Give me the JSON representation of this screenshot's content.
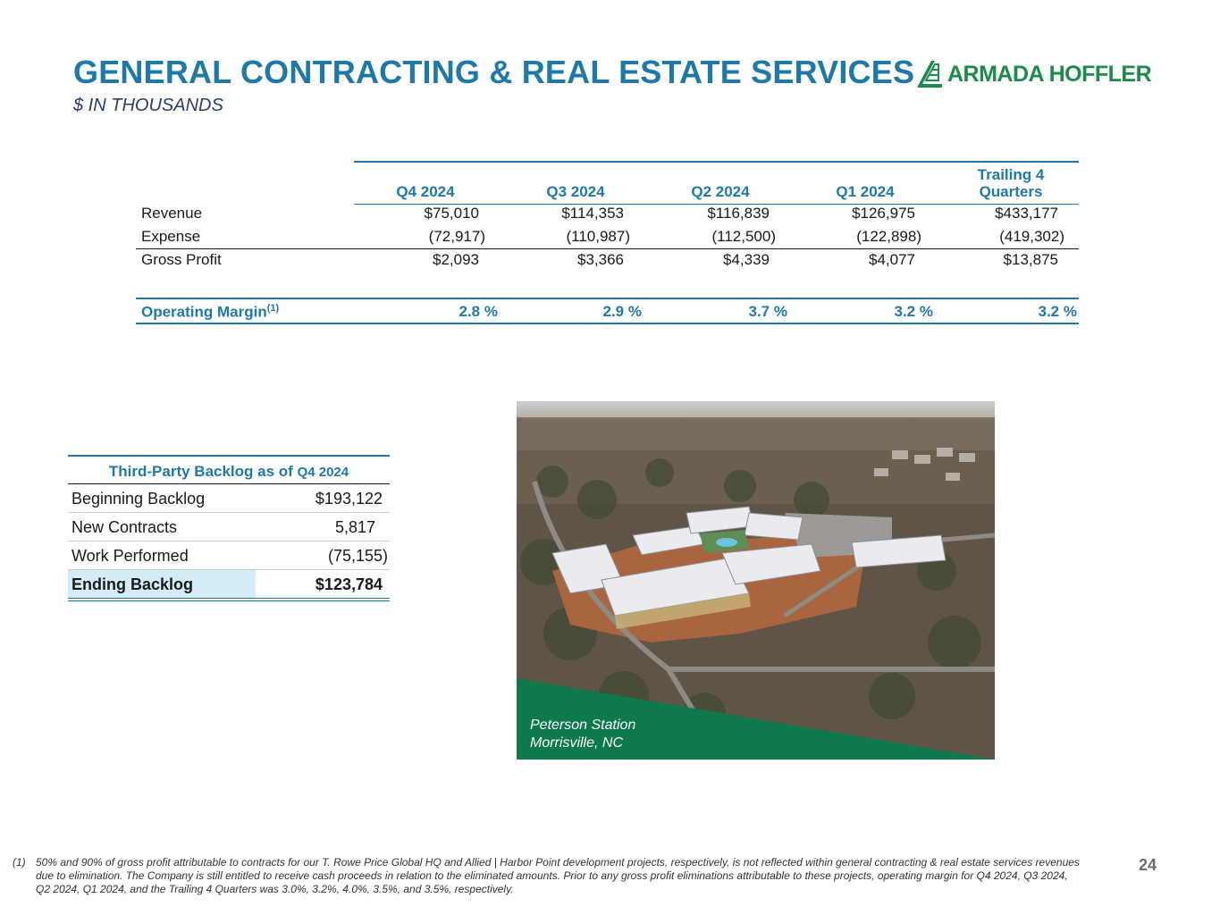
{
  "header": {
    "title": "GENERAL CONTRACTING & REAL ESTATE SERVICES",
    "subtitle": "$ IN THOUSANDS",
    "logo_text": "ARMADA HOFFLER"
  },
  "financials": {
    "columns": [
      "Q4 2024",
      "Q3 2024",
      "Q2 2024",
      "Q1 2024"
    ],
    "trailing_line1": "Trailing 4",
    "trailing_line2": "Quarters",
    "rows": [
      {
        "label": "Revenue",
        "values": [
          "$75,010",
          "$114,353",
          "$116,839",
          "$126,975",
          "$433,177"
        ]
      },
      {
        "label": "Expense",
        "values": [
          "(72,917)",
          "(110,987)",
          "(112,500)",
          "(122,898)",
          "(419,302)"
        ]
      },
      {
        "label": "Gross Profit",
        "values": [
          "$2,093",
          "$3,366",
          "$4,339",
          "$4,077",
          "$13,875"
        ]
      }
    ],
    "operating_margin": {
      "label": "Operating Margin",
      "footnote_mark": "(1)",
      "values": [
        "2.8",
        "2.9",
        "3.7",
        "3.2",
        "3.2"
      ],
      "unit": "%"
    }
  },
  "backlog": {
    "header_text": "Third-Party Backlog as of",
    "header_period": "Q4 2024",
    "rows": [
      {
        "label": "Beginning Backlog",
        "value": "$193,122"
      },
      {
        "label": "New Contracts",
        "value": "5,817"
      },
      {
        "label": "Work Performed",
        "value": "(75,155)"
      },
      {
        "label": "Ending Backlog",
        "value": "$123,784"
      }
    ]
  },
  "photo": {
    "caption_line1": "Peterson Station",
    "caption_line2": "Morrisville, NC"
  },
  "footnote": {
    "mark": "(1)",
    "text": "50% and 90% of gross profit attributable to contracts for our T. Rowe Price Global HQ and Allied | Harbor Point development projects, respectively, is not reflected within general contracting & real estate services revenues due to elimination. The Company is still entitled to receive cash proceeds in relation to the eliminated amounts. Prior to any gross profit eliminations attributable to these projects, operating margin for Q4 2024, Q3 2024, Q2 2024, Q1 2024, and the Trailing 4 Quarters was 3.0%, 3.2%, 4.0%, 3.5%, and 3.5%, respectively."
  },
  "page_number": "24",
  "colors": {
    "title_blue": "#1f79a8",
    "logo_green": "#1c8a4a",
    "caption_band_green": "#0e7a4c",
    "ending_backlog_shade": "#d3ecf8"
  }
}
